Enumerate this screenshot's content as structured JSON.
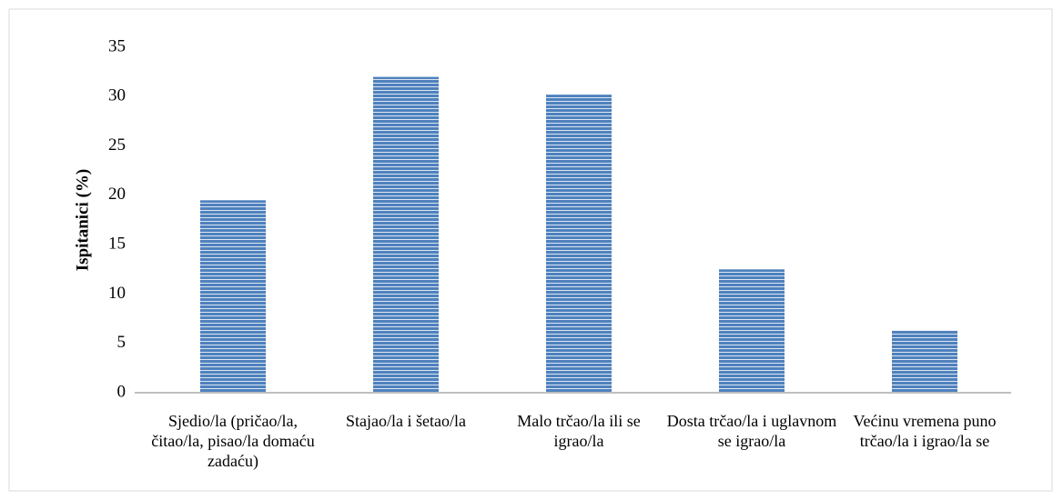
{
  "chart_data": {
    "type": "bar",
    "y_label": "Ispitanici (%)",
    "categories": [
      "Sjedio/la (pričao/la, čitao/la, pisao/la domaću zadaću)",
      "Stajao/la i šetao/la",
      "Malo trčao/la ili se igrao/la",
      "Dosta trčao/la i uglavnom se igrao/la",
      "Većinu vremena puno trčao/la i igrao/la se"
    ],
    "values": [
      19.5,
      32,
      30.2,
      12.5,
      6.3
    ],
    "color": "#4f81bd",
    "ylim": [
      0,
      35
    ],
    "yticks": [
      0,
      5,
      10,
      15,
      20,
      25,
      30,
      35
    ],
    "grid": false
  }
}
